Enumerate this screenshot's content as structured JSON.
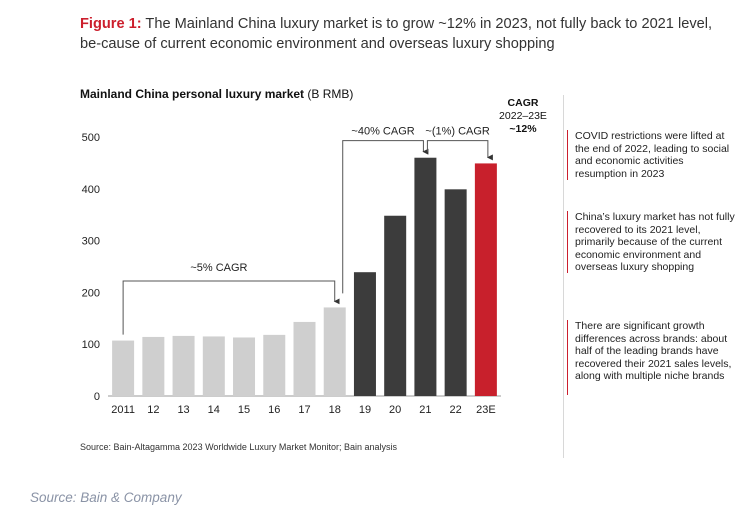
{
  "figure": {
    "lead": "Figure 1:",
    "title": " The Mainland China luxury market is to grow ~12% in 2023, not fully back to 2021 level, be-cause of current economic environment and overseas luxury shopping"
  },
  "chart_data": {
    "type": "bar",
    "title": "Mainland China personal luxury market",
    "unit": " (B RMB)",
    "categories": [
      "2011",
      "12",
      "13",
      "14",
      "15",
      "16",
      "17",
      "18",
      "19",
      "20",
      "21",
      "22",
      "23E"
    ],
    "values": [
      107,
      114,
      116,
      115,
      113,
      118,
      143,
      171,
      239,
      348,
      460,
      399,
      449
    ],
    "bar_colors": [
      "#cfcfcf",
      "#cfcfcf",
      "#cfcfcf",
      "#cfcfcf",
      "#cfcfcf",
      "#cfcfcf",
      "#cfcfcf",
      "#cfcfcf",
      "#3c3c3c",
      "#3c3c3c",
      "#3c3c3c",
      "#3c3c3c",
      "#c8202c"
    ],
    "yticks": [
      0,
      100,
      200,
      300,
      400,
      500
    ],
    "ylim": [
      0,
      520
    ],
    "annotations": [
      {
        "label": "~5% CAGR",
        "from": 0,
        "to": 7
      },
      {
        "label": "~40% CAGR",
        "from": 7,
        "to": 10
      },
      {
        "label": "~(1%) CAGR",
        "from": 10,
        "to": 12
      }
    ]
  },
  "cagr_header": {
    "title": "CAGR",
    "period": "2022–23E",
    "value": "~12%"
  },
  "notes": [
    "COVID restrictions were lifted at the end of 2022, leading to social and economic activities resumption in 2023",
    "China’s luxury market has not fully recovered to its 2021 level, primarily because of the current economic environment and overseas luxury shopping",
    "There are significant growth differences across brands: about half of the leading brands have recovered their 2021 sales levels, along with multiple niche brands"
  ],
  "source": "Source: Bain-Altagamma 2023 Worldwide Luxury Market Monitor; Bain analysis",
  "credit": "Source: Bain & Company",
  "colors": {
    "accent": "#cc1f2d",
    "light_bar": "#cfcfcf",
    "dark_bar": "#3c3c3c",
    "forecast_bar": "#c8202c"
  }
}
